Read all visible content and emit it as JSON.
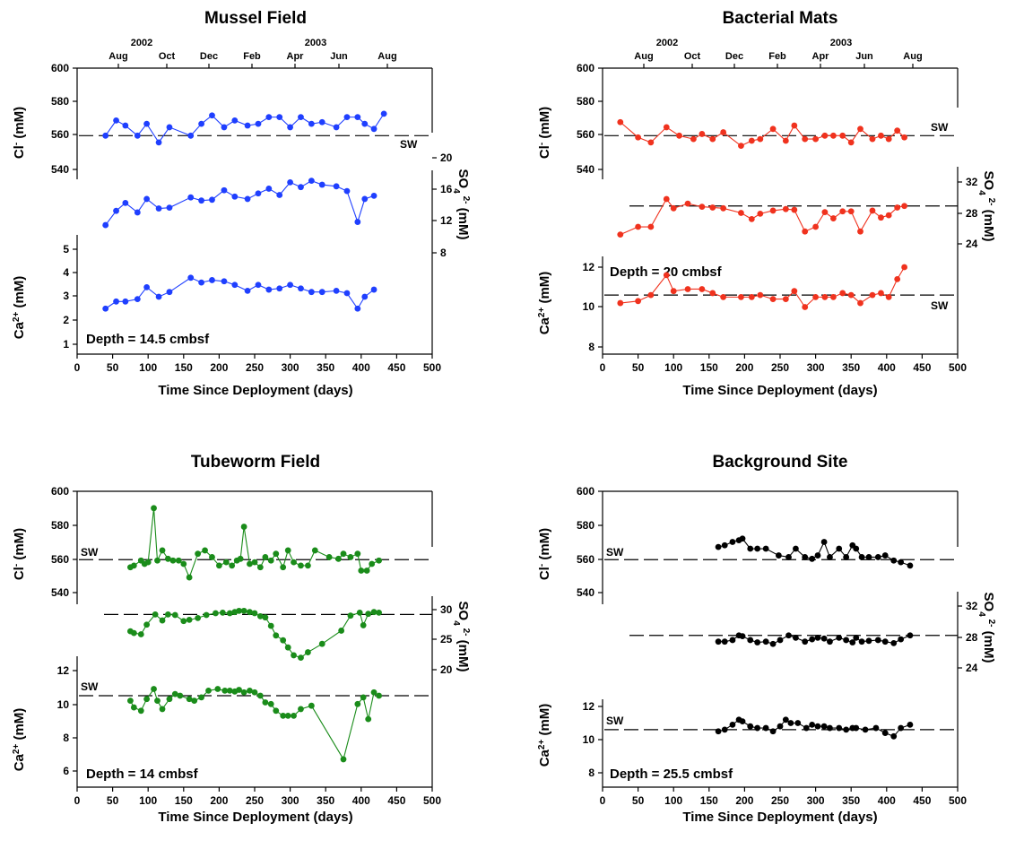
{
  "chart_data": [
    {
      "type": "line",
      "title": "Mussel Field",
      "xlabel": "Time Since Deployment (days)",
      "xlim": [
        0,
        500
      ],
      "x_ticks": [
        "0",
        "50",
        "100",
        "150",
        "200",
        "250",
        "300",
        "350",
        "400",
        "450",
        "500"
      ],
      "left_ticks": [
        "600",
        "580",
        "560",
        "540",
        "5",
        "4",
        "3",
        "2",
        "1"
      ],
      "right_ticks": [
        "20",
        "16",
        "12",
        "8"
      ],
      "top_years": [
        "2002",
        "2003"
      ],
      "top_months": [
        "Aug",
        "Oct",
        "Dec",
        "Feb",
        "Apr",
        "Jun",
        "Aug"
      ],
      "cl_label": "Cl",
      "cl_unit": "(mM)",
      "ca_label": "Ca",
      "ca_unit": "(mM)",
      "so4_label": "SO",
      "so4_unit": "(mM)",
      "sw_label": "SW",
      "depth_text": "Depth = 14.5 cmbsf",
      "color": "#1f3fff",
      "series": [
        {
          "x": [
            40,
            55,
            68,
            85,
            98,
            115,
            130,
            160,
            175,
            190,
            207,
            222,
            240,
            255,
            270,
            285,
            300,
            315,
            330,
            345,
            365,
            380,
            395,
            405,
            418,
            432
          ],
          "y": [
            560,
            569,
            566,
            560,
            567,
            556,
            565,
            560,
            567,
            572,
            565,
            569,
            566,
            567,
            571,
            571,
            565,
            571,
            567,
            568,
            565,
            571,
            571,
            567,
            564,
            573
          ]
        },
        {
          "x": [
            40,
            55,
            68,
            85,
            98,
            115,
            130,
            160,
            175,
            190,
            207,
            222,
            240,
            255,
            270,
            285,
            300,
            315,
            330,
            345,
            365,
            380,
            395,
            405,
            418
          ],
          "y": [
            11.5,
            13.3,
            14.3,
            13.1,
            14.8,
            13.6,
            13.7,
            15,
            14.6,
            14.7,
            15.9,
            15.1,
            14.8,
            15.5,
            16.1,
            15.3,
            16.9,
            16.3,
            17.1,
            16.6,
            16.4,
            15.8,
            11.9,
            14.8,
            15.2
          ]
        },
        {
          "x": [
            40,
            55,
            68,
            85,
            98,
            115,
            130,
            160,
            175,
            190,
            207,
            222,
            240,
            255,
            270,
            285,
            300,
            315,
            330,
            345,
            365,
            380,
            395,
            405,
            418
          ],
          "y": [
            2.5,
            2.8,
            2.8,
            2.9,
            3.4,
            3,
            3.2,
            3.8,
            3.6,
            3.7,
            3.65,
            3.5,
            3.25,
            3.5,
            3.3,
            3.35,
            3.5,
            3.35,
            3.2,
            3.2,
            3.25,
            3.15,
            2.5,
            3,
            3.3
          ]
        }
      ]
    },
    {
      "type": "line",
      "title": "Bacterial Mats",
      "xlabel": "Time Since Deployment (days)",
      "xlim": [
        0,
        500
      ],
      "x_ticks": [
        "0",
        "50",
        "100",
        "150",
        "200",
        "250",
        "300",
        "350",
        "400",
        "450",
        "500"
      ],
      "left_ticks": [
        "600",
        "580",
        "560",
        "540",
        "12",
        "10",
        "8"
      ],
      "right_ticks": [
        "32",
        "28",
        "24"
      ],
      "top_years": [
        "2002",
        "2003"
      ],
      "top_months": [
        "Aug",
        "Oct",
        "Dec",
        "Feb",
        "Apr",
        "Jun",
        "Aug"
      ],
      "cl_label": "Cl",
      "cl_unit": "(mM)",
      "ca_label": "Ca",
      "ca_unit": "(mM)",
      "so4_label": "SO",
      "so4_unit": "(mM)",
      "sw_label": "SW",
      "sw_label_2": "SW",
      "depth_text": "Depth = 20 cmbsf",
      "color": "#f0321e",
      "series": [
        {
          "x": [
            25,
            50,
            68,
            90,
            108,
            128,
            140,
            155,
            170,
            195,
            210,
            222,
            240,
            258,
            270,
            285,
            300,
            313,
            325,
            338,
            350,
            363,
            380,
            392,
            403,
            415,
            425
          ],
          "y": [
            568,
            559,
            556,
            565,
            560,
            558,
            561,
            558,
            562,
            554,
            557,
            558,
            564,
            557,
            566,
            558,
            558,
            560,
            560,
            560,
            556,
            564,
            558,
            560,
            558,
            563,
            559
          ]
        },
        {
          "x": [
            25,
            50,
            68,
            90,
            100,
            120,
            140,
            155,
            170,
            195,
            210,
            222,
            240,
            258,
            270,
            285,
            300,
            313,
            325,
            338,
            350,
            363,
            380,
            392,
            403,
            415,
            425
          ],
          "y": [
            25.2,
            26.2,
            26.2,
            29.8,
            28.6,
            29.2,
            28.8,
            28.7,
            28.6,
            28,
            27.2,
            27.9,
            28.3,
            28.5,
            28.4,
            25.6,
            26.2,
            28.1,
            27.3,
            28.2,
            28.2,
            25.6,
            28.3,
            27.4,
            27.7,
            28.7,
            28.9
          ]
        },
        {
          "x": [
            25,
            50,
            68,
            90,
            100,
            120,
            140,
            155,
            170,
            195,
            210,
            222,
            240,
            258,
            270,
            285,
            300,
            313,
            325,
            338,
            350,
            363,
            380,
            392,
            403,
            415,
            425
          ],
          "y": [
            10.2,
            10.3,
            10.6,
            11.6,
            10.8,
            10.9,
            10.9,
            10.7,
            10.5,
            10.5,
            10.5,
            10.6,
            10.4,
            10.4,
            10.8,
            10,
            10.5,
            10.5,
            10.5,
            10.7,
            10.6,
            10.2,
            10.6,
            10.7,
            10.5,
            11.4,
            12
          ]
        }
      ]
    },
    {
      "type": "line",
      "title": "Tubeworm Field",
      "xlabel": "Time Since Deployment (days)",
      "xlim": [
        0,
        500
      ],
      "x_ticks": [
        "0",
        "50",
        "100",
        "150",
        "200",
        "250",
        "300",
        "350",
        "400",
        "450",
        "500"
      ],
      "left_ticks": [
        "600",
        "580",
        "560",
        "540",
        "12",
        "10",
        "8",
        "6"
      ],
      "right_ticks": [
        "30",
        "25",
        "20"
      ],
      "cl_label": "Cl",
      "cl_unit": "(mM)",
      "ca_label": "Ca",
      "ca_unit": "(mM)",
      "so4_label": "SO",
      "so4_unit": "(mM)",
      "sw_label": "SW",
      "sw_label_2": "SW",
      "depth_text": "Depth = 14 cmbsf",
      "color": "#1a8c1a",
      "series": [
        {
          "x": [
            75,
            80,
            90,
            95,
            100,
            108,
            113,
            120,
            128,
            135,
            143,
            150,
            158,
            170,
            180,
            190,
            200,
            210,
            218,
            225,
            230,
            235,
            243,
            250,
            258,
            265,
            273,
            280,
            290,
            297,
            305,
            315,
            325,
            335,
            355,
            368,
            375,
            385,
            395,
            400,
            408,
            415,
            425
          ],
          "y": [
            555,
            556,
            559,
            557,
            558,
            590,
            559,
            565,
            560,
            559,
            559,
            557,
            549,
            563,
            565,
            561,
            556,
            558,
            556,
            559,
            560,
            579,
            557,
            558,
            555,
            561,
            559,
            563,
            555,
            565,
            558,
            556,
            556,
            565,
            561,
            560,
            563,
            561,
            563,
            553,
            553,
            557,
            559
          ]
        },
        {
          "x": [
            75,
            80,
            90,
            98,
            110,
            120,
            128,
            138,
            150,
            158,
            170,
            182,
            195,
            205,
            215,
            222,
            228,
            235,
            243,
            250,
            258,
            265,
            273,
            280,
            290,
            297,
            305,
            315,
            325,
            345,
            372,
            385,
            398,
            403,
            410,
            418,
            425
          ],
          "y": [
            26.4,
            26.1,
            25.9,
            27.5,
            29.2,
            28.2,
            29.2,
            29.1,
            28.1,
            28.3,
            28.6,
            29.1,
            29.4,
            29.5,
            29.4,
            29.6,
            29.8,
            29.8,
            29.6,
            29.4,
            28.9,
            28.7,
            27.3,
            25.7,
            24.9,
            23.7,
            22.4,
            22,
            22.9,
            24.3,
            26.5,
            29,
            29.5,
            27.4,
            29.3,
            29.6,
            29.5
          ]
        },
        {
          "x": [
            75,
            80,
            90,
            98,
            108,
            113,
            120,
            130,
            138,
            145,
            158,
            165,
            175,
            185,
            198,
            208,
            215,
            222,
            228,
            235,
            243,
            250,
            258,
            265,
            273,
            280,
            290,
            297,
            305,
            315,
            330,
            375,
            395,
            403,
            410,
            418,
            425
          ],
          "y": [
            10.2,
            9.8,
            9.6,
            10.3,
            10.9,
            10.2,
            9.7,
            10.3,
            10.6,
            10.5,
            10.3,
            10.2,
            10.4,
            10.8,
            10.9,
            10.8,
            10.8,
            10.75,
            10.85,
            10.7,
            10.8,
            10.7,
            10.5,
            10.1,
            10,
            9.6,
            9.3,
            9.3,
            9.3,
            9.7,
            9.9,
            6.7,
            10,
            10.4,
            9.1,
            10.7,
            10.5
          ]
        }
      ]
    },
    {
      "type": "line",
      "title": "Background Site",
      "xlabel": "Time Since Deployment (days)",
      "xlim": [
        0,
        500
      ],
      "x_ticks": [
        "0",
        "50",
        "100",
        "150",
        "200",
        "250",
        "300",
        "350",
        "400",
        "450",
        "500"
      ],
      "left_ticks": [
        "600",
        "580",
        "560",
        "540",
        "12",
        "10",
        "8"
      ],
      "right_ticks": [
        "32",
        "28",
        "24"
      ],
      "cl_label": "Cl",
      "cl_unit": "(mM)",
      "ca_label": "Ca",
      "ca_unit": "(mM)",
      "so4_label": "SO",
      "so4_unit": "(mM)",
      "sw_label": "SW",
      "sw_label_2": "SW",
      "depth_text": "Depth = 25.5 cmbsf",
      "color": "#000000",
      "series": [
        {
          "x": [
            163,
            172,
            183,
            192,
            197,
            208,
            218,
            230,
            248,
            262,
            272,
            285,
            295,
            303,
            312,
            320,
            333,
            343,
            352,
            357,
            365,
            375,
            388,
            398,
            410,
            420,
            433
          ],
          "y": [
            567,
            568,
            570,
            571,
            572,
            566,
            566,
            566,
            562,
            561,
            566,
            561,
            560,
            562,
            570,
            561,
            566,
            561,
            568,
            566,
            561,
            561,
            561,
            562,
            559,
            558,
            556
          ]
        },
        {
          "x": [
            163,
            172,
            183,
            192,
            197,
            208,
            218,
            230,
            240,
            250,
            262,
            272,
            285,
            295,
            303,
            312,
            320,
            333,
            343,
            352,
            357,
            365,
            375,
            388,
            398,
            410,
            420,
            433
          ],
          "y": [
            27.4,
            27.4,
            27.6,
            28.2,
            28.1,
            27.6,
            27.3,
            27.4,
            27.1,
            27.6,
            28.2,
            27.9,
            27.4,
            27.7,
            27.9,
            27.8,
            27.4,
            27.9,
            27.6,
            27.3,
            27.9,
            27.4,
            27.5,
            27.6,
            27.4,
            27.2,
            27.7,
            28.2
          ]
        },
        {
          "x": [
            163,
            172,
            183,
            192,
            197,
            208,
            218,
            230,
            240,
            250,
            258,
            265,
            275,
            287,
            295,
            303,
            312,
            320,
            333,
            343,
            352,
            357,
            370,
            385,
            398,
            410,
            420,
            433
          ],
          "y": [
            10.5,
            10.6,
            10.9,
            11.2,
            11.1,
            10.8,
            10.7,
            10.7,
            10.5,
            10.8,
            11.2,
            11,
            11,
            10.7,
            10.9,
            10.8,
            10.8,
            10.7,
            10.7,
            10.6,
            10.7,
            10.7,
            10.6,
            10.7,
            10.4,
            10.2,
            10.7,
            10.9
          ]
        }
      ]
    }
  ]
}
